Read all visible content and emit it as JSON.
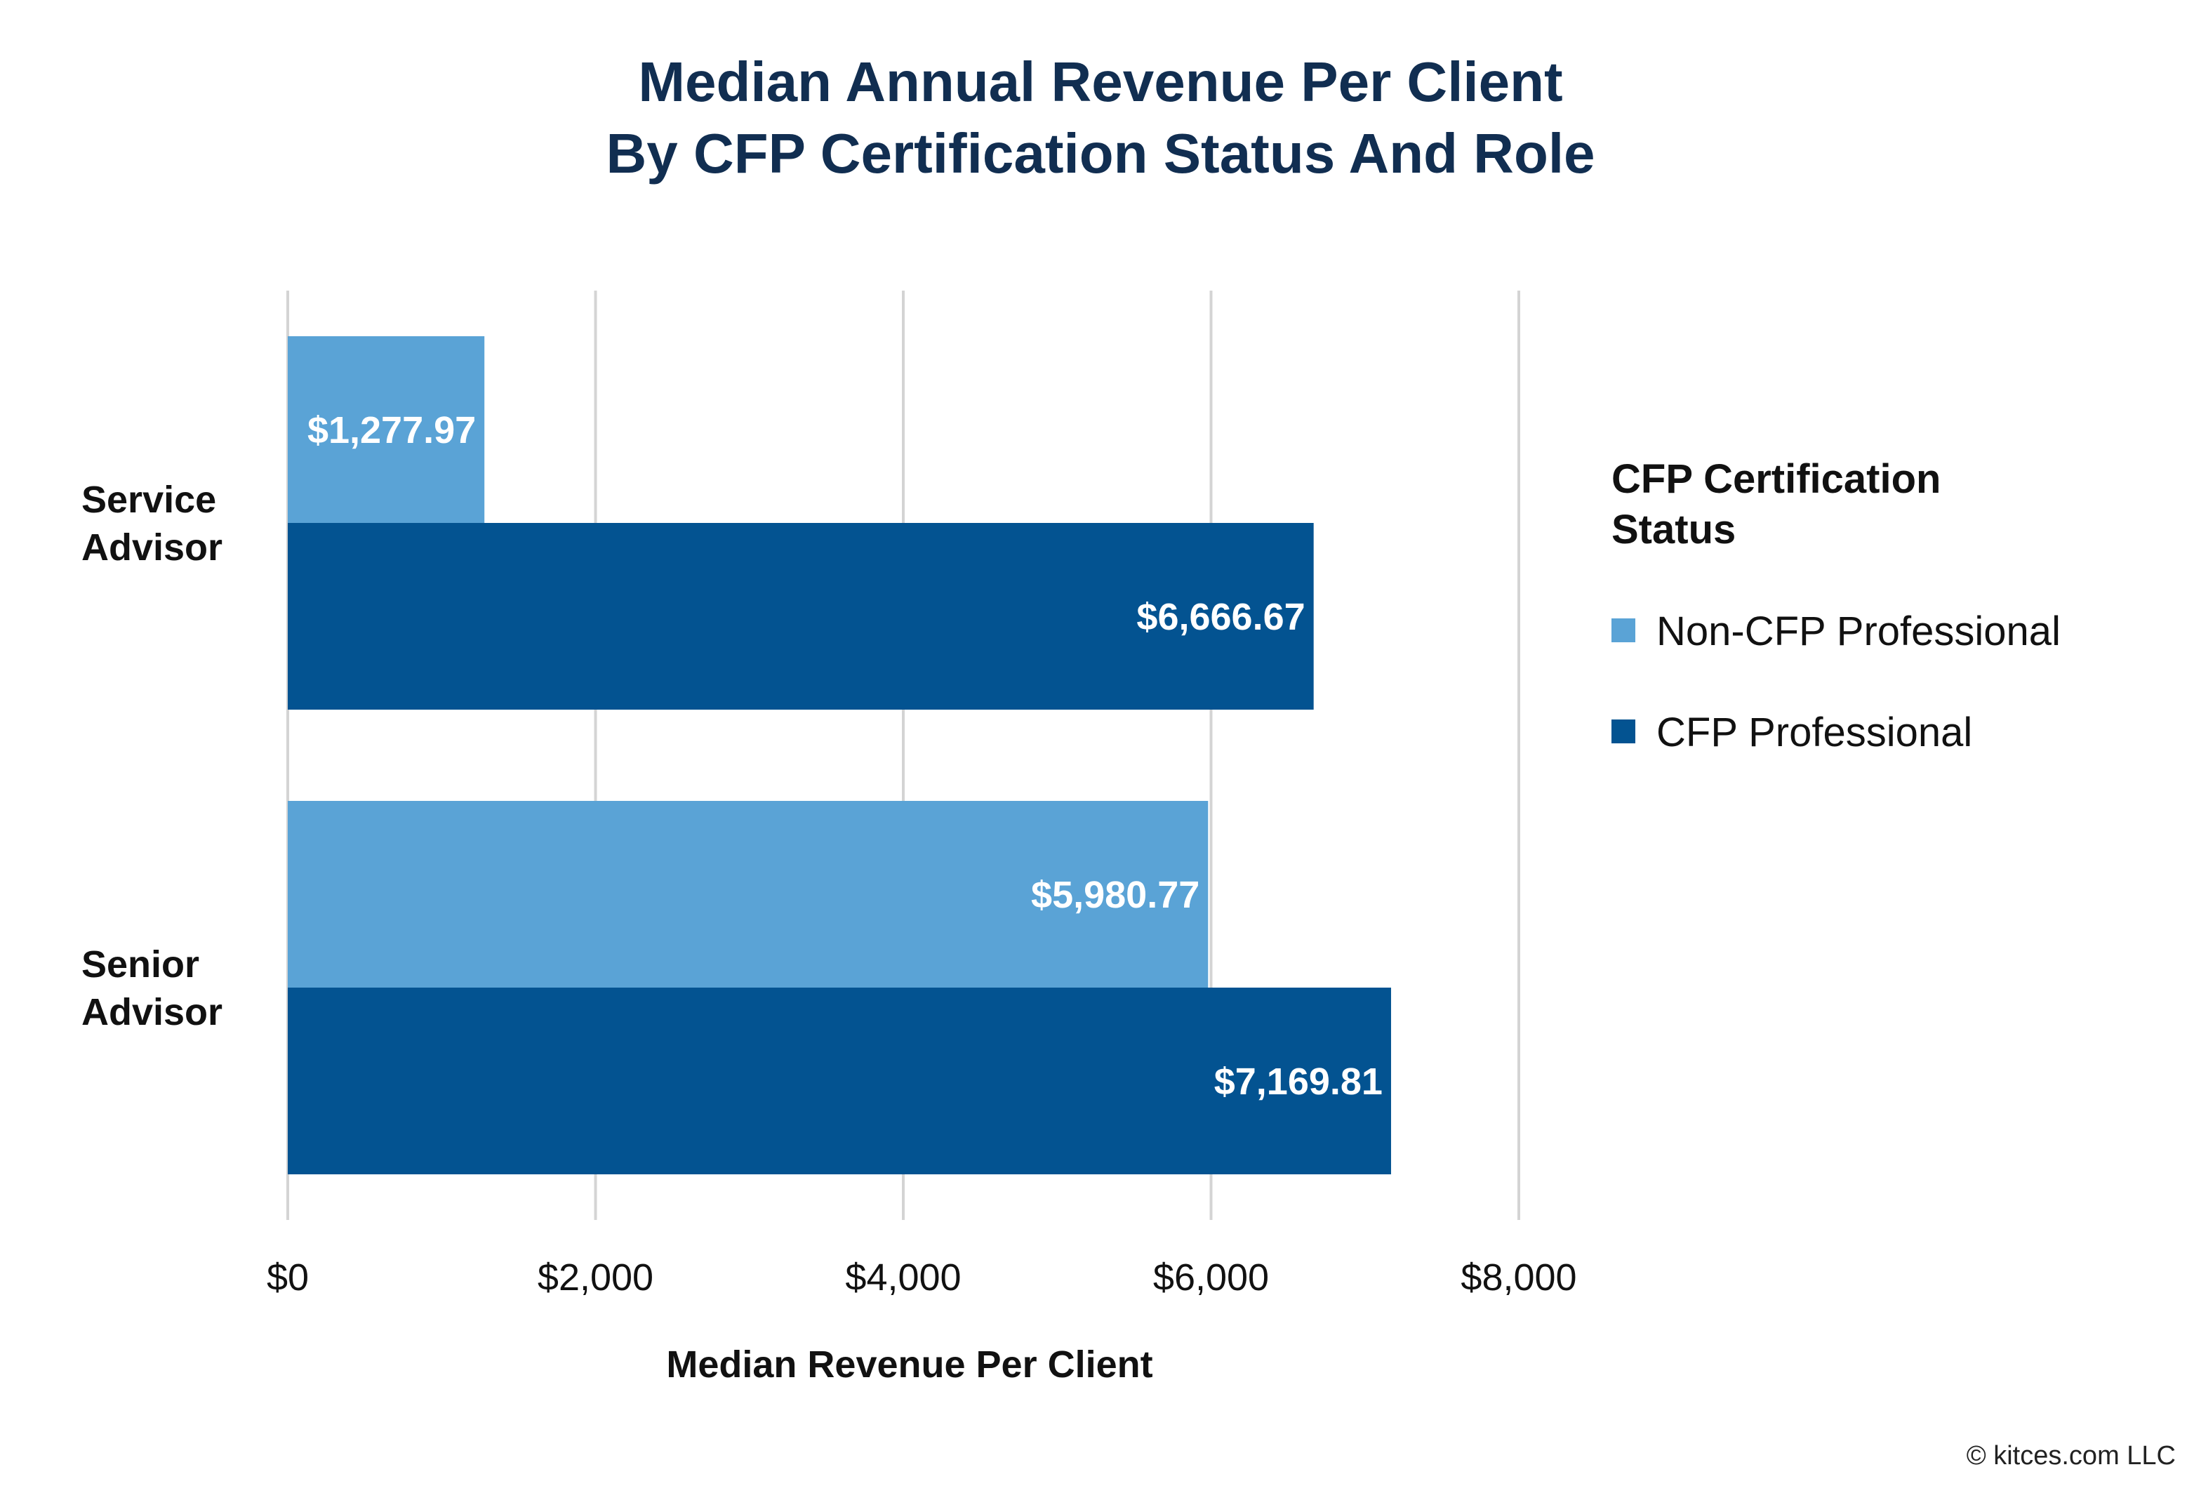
{
  "chart_data": {
    "type": "bar",
    "orientation": "horizontal",
    "title_lines": [
      "Median Annual Revenue Per Client",
      "By CFP Certification Status And Role"
    ],
    "categories": [
      {
        "lines": [
          "Service",
          "Advisor"
        ]
      },
      {
        "lines": [
          "Senior",
          "Advisor"
        ]
      }
    ],
    "series": [
      {
        "name": "Non-CFP Professional",
        "color": "#5aa3d6",
        "values": [
          1277.97,
          5980.77
        ],
        "labels": [
          "$1,277.97",
          "$5,980.77"
        ]
      },
      {
        "name": "CFP Professional",
        "color": "#035391",
        "values": [
          6666.67,
          7169.81
        ],
        "labels": [
          "$6,666.67",
          "$7,169.81"
        ]
      }
    ],
    "xlabel": "Median Revenue Per Client",
    "xlim": [
      0,
      8000
    ],
    "xticks": [
      0,
      2000,
      4000,
      6000,
      8000
    ],
    "xtick_labels": [
      "$0",
      "$2,000",
      "$4,000",
      "$6,000",
      "$8,000"
    ],
    "grid": "vertical",
    "legend": {
      "title_lines": [
        "CFP Certification",
        "Status"
      ],
      "placement": "right"
    }
  },
  "credit": "© kitces.com LLC"
}
